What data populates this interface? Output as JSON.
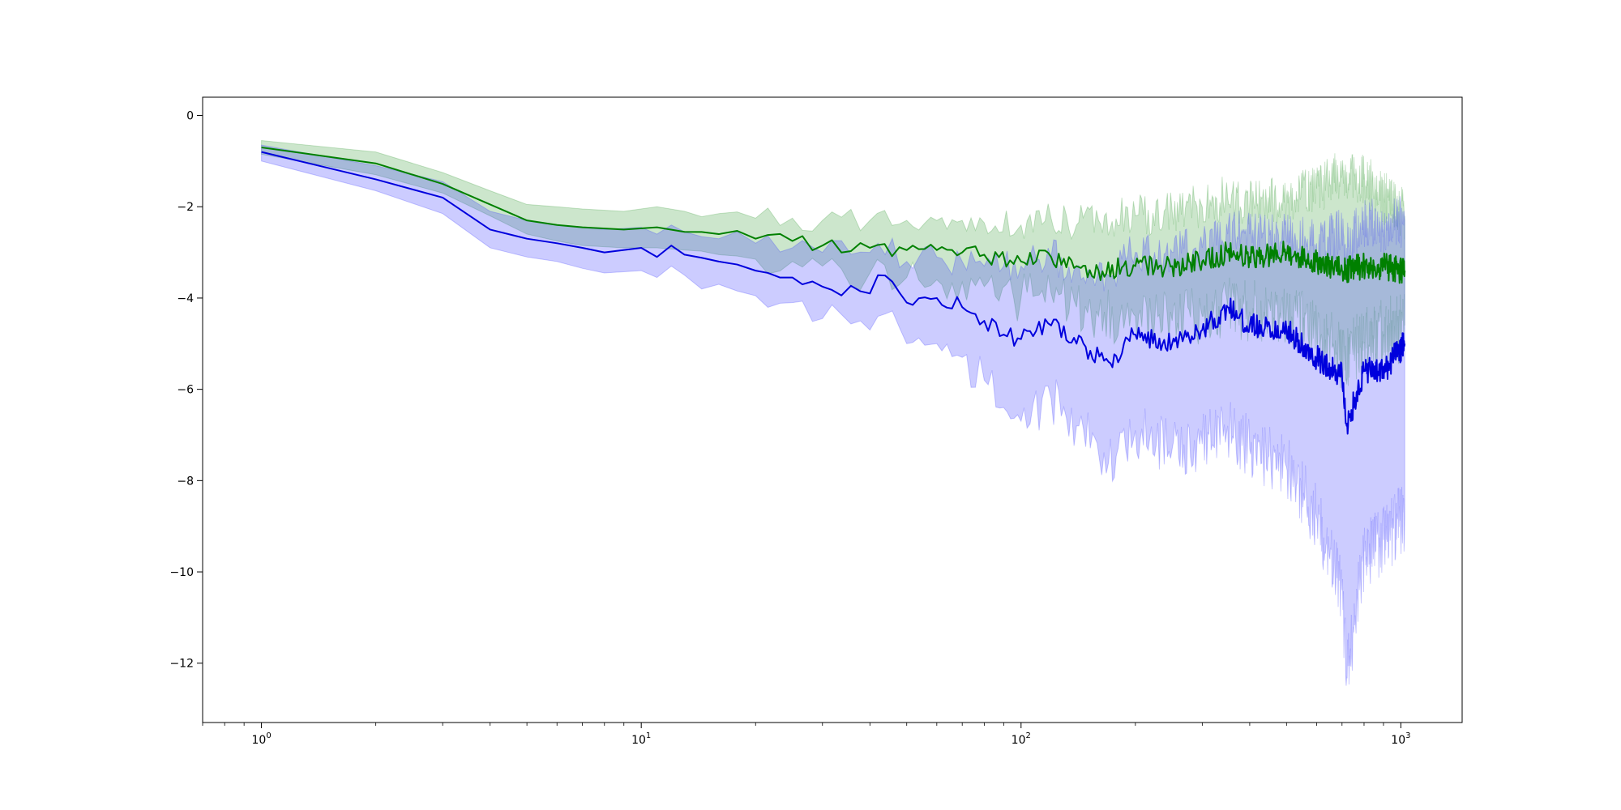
{
  "chart_data": {
    "type": "line",
    "title": "",
    "xlabel": "",
    "ylabel": "",
    "xscale": "log",
    "xlim": [
      0.7,
      1450
    ],
    "ylim": [
      -13.3,
      0.4
    ],
    "grid": false,
    "legend": "none",
    "x_ticks": [
      {
        "value": 1,
        "base": "10",
        "exp": "0"
      },
      {
        "value": 10,
        "base": "10",
        "exp": "1"
      },
      {
        "value": 100,
        "base": "10",
        "exp": "2"
      },
      {
        "value": 1000,
        "base": "10",
        "exp": "3"
      }
    ],
    "y_ticks": [
      {
        "value": 0,
        "label": "0"
      },
      {
        "value": -2,
        "label": "−2"
      },
      {
        "value": -4,
        "label": "−4"
      },
      {
        "value": -6,
        "label": "−6"
      },
      {
        "value": -8,
        "label": "−8"
      },
      {
        "value": -10,
        "label": "−10"
      },
      {
        "value": -12,
        "label": "−12"
      }
    ],
    "series": [
      {
        "color": "#008000",
        "band_color": "#008000",
        "band_opacity": 0.2,
        "points": [
          [
            1,
            -0.7,
            -0.55,
            -0.85
          ],
          [
            2,
            -1.05,
            -0.8,
            -1.3
          ],
          [
            3,
            -1.5,
            -1.25,
            -1.7
          ],
          [
            4,
            -1.95,
            -1.65,
            -2.2
          ],
          [
            5,
            -2.3,
            -1.95,
            -2.6
          ],
          [
            6,
            -2.4,
            -2.0,
            -2.75
          ],
          [
            7,
            -2.45,
            -2.05,
            -2.85
          ],
          [
            9,
            -2.5,
            -2.1,
            -2.9
          ],
          [
            11,
            -2.45,
            -2.0,
            -2.9
          ],
          [
            13,
            -2.55,
            -2.1,
            -2.95
          ],
          [
            16,
            -2.6,
            -2.15,
            -3.05
          ],
          [
            20,
            -2.7,
            -2.25,
            -3.15
          ],
          [
            25,
            -2.75,
            -2.25,
            -3.2
          ],
          [
            30,
            -2.85,
            -2.3,
            -3.3
          ],
          [
            40,
            -2.9,
            -2.3,
            -3.45
          ],
          [
            50,
            -2.95,
            -2.3,
            -3.55
          ],
          [
            60,
            -2.95,
            -2.3,
            -3.6
          ],
          [
            70,
            -3.0,
            -2.3,
            -3.65
          ],
          [
            80,
            -3.05,
            -2.35,
            -3.75
          ],
          [
            100,
            -3.2,
            -2.4,
            -4.0
          ],
          [
            120,
            -3.1,
            -2.25,
            -3.9
          ],
          [
            140,
            -3.3,
            -2.4,
            -4.2
          ],
          [
            160,
            -3.4,
            -2.3,
            -4.4
          ],
          [
            200,
            -3.3,
            -2.2,
            -4.4
          ],
          [
            250,
            -3.3,
            -2.1,
            -4.5
          ],
          [
            300,
            -3.2,
            -2.0,
            -4.4
          ],
          [
            350,
            -3.0,
            -1.8,
            -4.2
          ],
          [
            400,
            -3.1,
            -1.9,
            -4.3
          ],
          [
            500,
            -3.0,
            -1.8,
            -4.3
          ],
          [
            600,
            -3.2,
            -1.6,
            -4.7
          ],
          [
            700,
            -3.4,
            -1.3,
            -5.3
          ],
          [
            800,
            -3.3,
            -1.4,
            -5.0
          ],
          [
            900,
            -3.3,
            -1.8,
            -4.8
          ],
          [
            1024,
            -3.4,
            -2.2,
            -4.6
          ]
        ]
      },
      {
        "color": "#0000dd",
        "band_color": "#3333ff",
        "band_opacity": 0.25,
        "points": [
          [
            1,
            -0.8,
            -0.65,
            -1.0
          ],
          [
            2,
            -1.4,
            -1.1,
            -1.65
          ],
          [
            3,
            -1.8,
            -1.45,
            -2.15
          ],
          [
            4,
            -2.5,
            -2.1,
            -2.9
          ],
          [
            5,
            -2.7,
            -2.3,
            -3.1
          ],
          [
            6,
            -2.8,
            -2.4,
            -3.2
          ],
          [
            7,
            -2.9,
            -2.45,
            -3.35
          ],
          [
            8,
            -3.0,
            -2.5,
            -3.45
          ],
          [
            10,
            -2.9,
            -2.45,
            -3.4
          ],
          [
            11,
            -3.1,
            -2.6,
            -3.55
          ],
          [
            12,
            -2.85,
            -2.4,
            -3.3
          ],
          [
            13,
            -3.05,
            -2.55,
            -3.5
          ],
          [
            16,
            -3.2,
            -2.7,
            -3.7
          ],
          [
            20,
            -3.4,
            -2.8,
            -3.95
          ],
          [
            25,
            -3.55,
            -2.9,
            -4.1
          ],
          [
            30,
            -3.75,
            -3.0,
            -4.45
          ],
          [
            40,
            -3.9,
            -3.0,
            -4.7
          ],
          [
            42,
            -3.5,
            -2.8,
            -4.4
          ],
          [
            50,
            -4.1,
            -3.2,
            -5.0
          ],
          [
            60,
            -4.0,
            -3.1,
            -5.0
          ],
          [
            70,
            -4.2,
            -3.2,
            -5.3
          ],
          [
            80,
            -4.5,
            -3.3,
            -5.8
          ],
          [
            90,
            -4.8,
            -3.3,
            -6.4
          ],
          [
            100,
            -4.9,
            -3.3,
            -6.7
          ],
          [
            120,
            -4.6,
            -3.1,
            -6.2
          ],
          [
            140,
            -5.0,
            -3.3,
            -6.8
          ],
          [
            170,
            -5.4,
            -3.5,
            -7.6
          ],
          [
            200,
            -4.8,
            -3.0,
            -6.9
          ],
          [
            250,
            -5.0,
            -3.0,
            -7.3
          ],
          [
            300,
            -4.7,
            -2.9,
            -7.2
          ],
          [
            350,
            -4.2,
            -2.6,
            -6.8
          ],
          [
            400,
            -4.6,
            -2.6,
            -7.3
          ],
          [
            500,
            -4.7,
            -2.7,
            -7.7
          ],
          [
            600,
            -5.3,
            -2.8,
            -8.8
          ],
          [
            700,
            -5.7,
            -2.6,
            -10.4
          ],
          [
            720,
            -6.8,
            -2.9,
            -12.3
          ],
          [
            800,
            -5.6,
            -2.3,
            -9.6
          ],
          [
            900,
            -5.6,
            -2.5,
            -9.3
          ],
          [
            1024,
            -5.0,
            -2.3,
            -8.8
          ]
        ]
      }
    ]
  }
}
